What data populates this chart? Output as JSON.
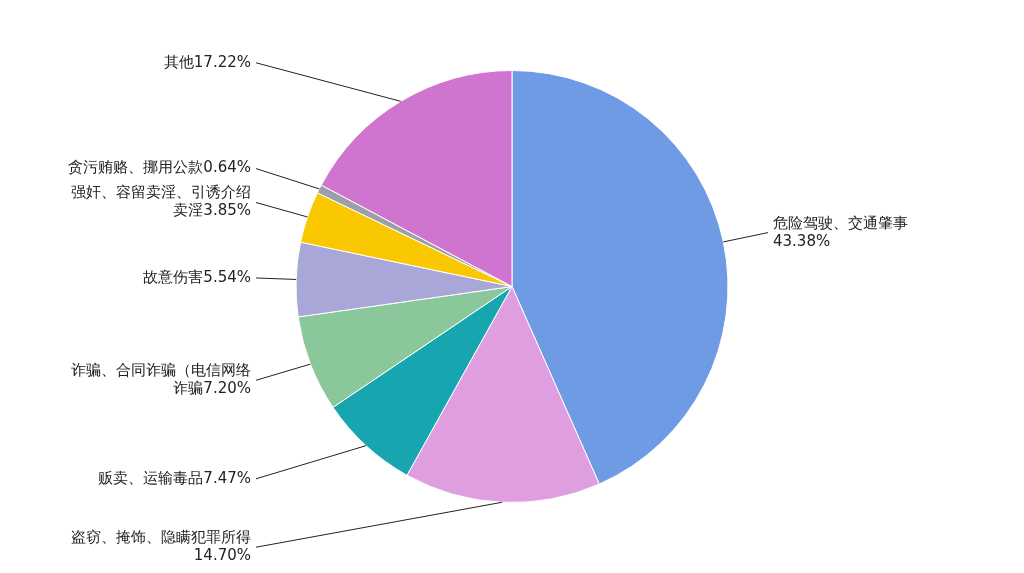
{
  "chart_data": {
    "type": "pie",
    "categories": [
      "危险驾驶、交通肇事",
      "盗窃、掩饰、隐瞒犯罪所得",
      "贩卖、运输毒品",
      "诈骗、合同诈骗（电信网络诈骗",
      "故意伤害",
      "强奸、容留卖淫、引诱介绍卖淫",
      "贪污贿赂、挪用公款",
      "其他"
    ],
    "values": [
      43.38,
      14.7,
      7.47,
      7.2,
      5.54,
      3.85,
      0.64,
      17.22
    ],
    "value_labels": [
      "43.38%",
      "14.70%",
      "7.47%",
      "7.20%",
      "5.54%",
      "3.85%",
      "0.64%",
      "17.22%"
    ],
    "colors": [
      "#6f9ae4",
      "#de9ee0",
      "#17a5b0",
      "#8ac89b",
      "#a9a6d8",
      "#f9c800",
      "#9aa0a8",
      "#cf74cf"
    ],
    "legend": false
  }
}
